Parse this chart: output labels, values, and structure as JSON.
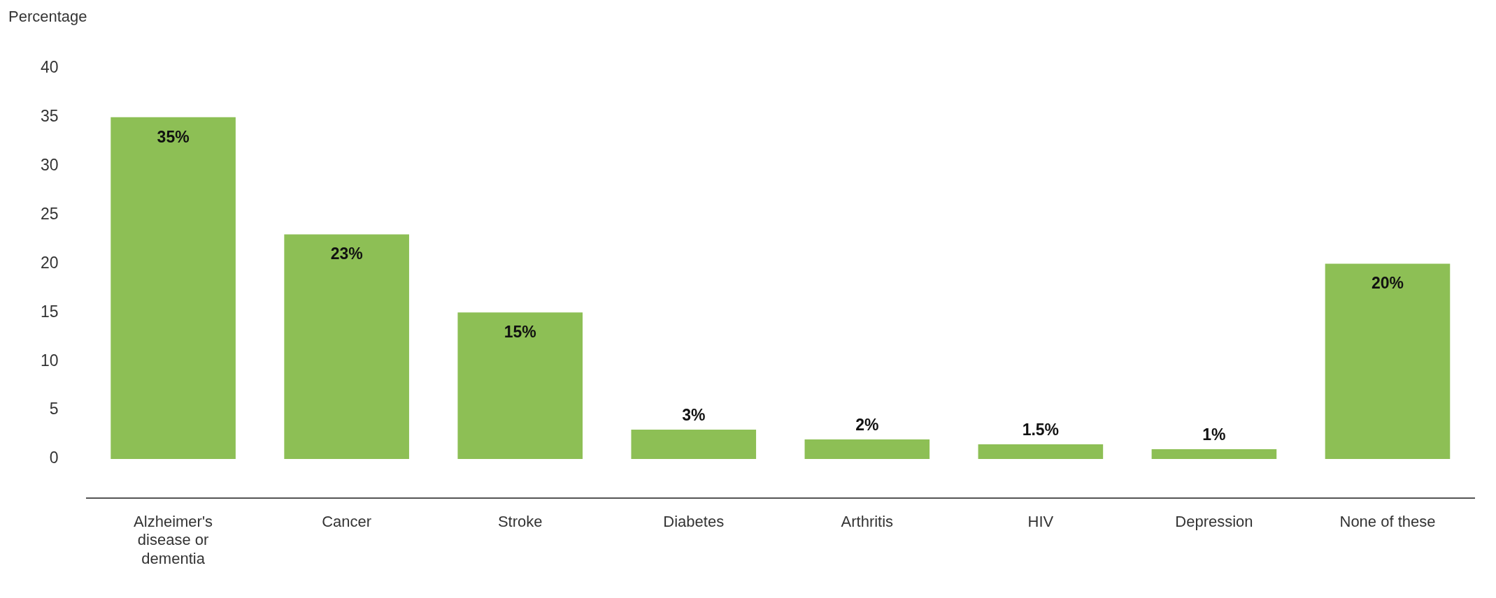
{
  "chart_data": {
    "type": "bar",
    "ylabel": "Percentage",
    "categories": [
      "Alzheimer's disease or dementia",
      "Cancer",
      "Stroke",
      "Diabetes",
      "Arthritis",
      "HIV",
      "Depression",
      "None of these"
    ],
    "values": [
      35,
      23,
      15,
      3,
      2,
      1.5,
      1,
      20
    ],
    "value_labels": [
      "35%",
      "23%",
      "15%",
      "3%",
      "2%",
      "1.5%",
      "1%",
      "20%"
    ],
    "color": "#8dbf55",
    "ylim": [
      -4,
      40
    ],
    "yticks": [
      0,
      5,
      10,
      15,
      20,
      25,
      30,
      35,
      40
    ],
    "grid": false,
    "legend": false
  }
}
